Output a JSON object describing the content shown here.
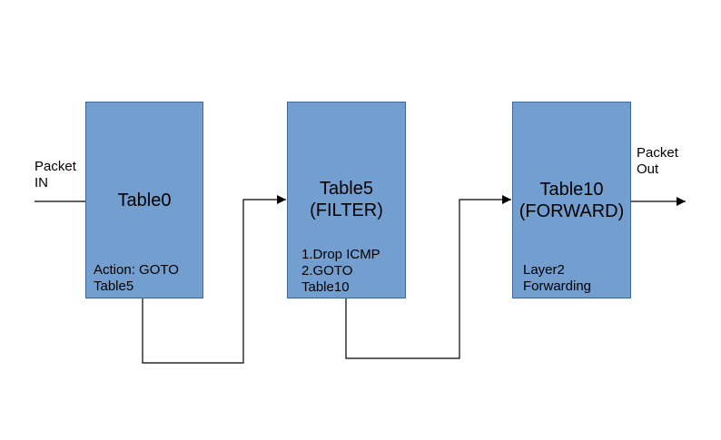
{
  "colors": {
    "box_fill": "#729fcf",
    "box_border": "#3e6797",
    "line": "#000000"
  },
  "input": {
    "label_line1": "Packet",
    "label_line2": "IN"
  },
  "output": {
    "label_line1": "Packet",
    "label_line2": "Out"
  },
  "tables": [
    {
      "title_line1": "Table0",
      "note_line1": "Action: GOTO",
      "note_line2": "Table5"
    },
    {
      "title_line1": "Table5",
      "title_line2": "(FILTER)",
      "note_line1": "1.Drop ICMP",
      "note_line2": "2.GOTO",
      "note_line3": "Table10"
    },
    {
      "title_line1": "Table10",
      "title_line2": "(FORWARD)",
      "note_line1": "Layer2",
      "note_line2": "Forwarding"
    }
  ]
}
